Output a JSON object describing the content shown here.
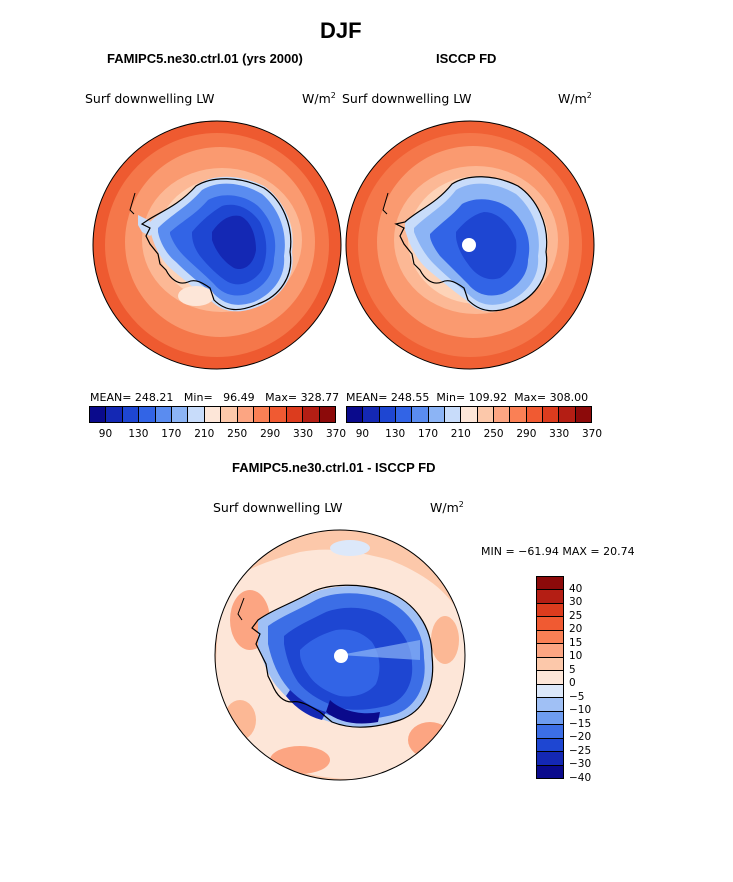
{
  "figure": {
    "title": "DJF"
  },
  "panel_left": {
    "title": "FAMIPC5.ne30.ctrl.01 (yrs 2000)",
    "variable": "Surf downwelling LW",
    "units_base": "W/m",
    "units_exp": "2",
    "mean_label": "MEAN=",
    "mean": "248.21",
    "min_label": "Min=",
    "min": "96.49",
    "max_label": "Max=",
    "max": "328.77"
  },
  "panel_right": {
    "title": "ISCCP FD",
    "variable": "Surf downwelling LW",
    "units_base": "W/m",
    "units_exp": "2",
    "mean_label": "MEAN=",
    "mean": "248.55",
    "min_label": "Min=",
    "min": "109.92",
    "max_label": "Max=",
    "max": "308.00"
  },
  "panel_diff": {
    "title": "FAMIPC5.ne30.ctrl.01 - ISCCP FD",
    "variable": "Surf downwelling LW",
    "units_base": "W/m",
    "units_exp": "2",
    "minmax_text": "MIN = −61.94 MAX =  20.74"
  },
  "colorbar_top": {
    "ticks": [
      "90",
      "130",
      "170",
      "210",
      "250",
      "290",
      "330",
      "370"
    ],
    "colors": [
      "#0a0a8c",
      "#1428b4",
      "#1e46d2",
      "#3264e6",
      "#5a8cf0",
      "#8cb4f5",
      "#c8dcfa",
      "#fde6d8",
      "#fcc8aa",
      "#fca582",
      "#fa8055",
      "#f05a32",
      "#dc3c1e",
      "#b41e14",
      "#8c0a0a"
    ]
  },
  "colorbar_diff": {
    "ticks": [
      "40",
      "30",
      "25",
      "20",
      "15",
      "10",
      "5",
      "0",
      "−5",
      "−10",
      "−15",
      "−20",
      "−25",
      "−30",
      "−40"
    ],
    "colors": [
      "#8c0a0a",
      "#b41e14",
      "#dc3c1e",
      "#f05a32",
      "#fa8055",
      "#fca582",
      "#fcc8aa",
      "#fde6d8",
      "#dce8fa",
      "#a0c0f5",
      "#6e9cf0",
      "#3c6ee6",
      "#1e46d2",
      "#1428b4",
      "#0a0a8c"
    ]
  },
  "chart_data": [
    {
      "type": "heatmap",
      "title": "FAMIPC5.ne30.ctrl.01 (yrs 2000)",
      "variable": "Surf downwelling LW",
      "units": "W/m2",
      "season": "DJF",
      "stats": {
        "mean": 248.21,
        "min": 96.49,
        "max": 328.77
      },
      "levels": [
        90,
        130,
        170,
        210,
        250,
        290,
        330,
        370
      ]
    },
    {
      "type": "heatmap",
      "title": "ISCCP FD",
      "variable": "Surf downwelling LW",
      "units": "W/m2",
      "season": "DJF",
      "stats": {
        "mean": 248.55,
        "min": 109.92,
        "max": 308.0
      },
      "levels": [
        90,
        130,
        170,
        210,
        250,
        290,
        330,
        370
      ]
    },
    {
      "type": "heatmap",
      "title": "FAMIPC5.ne30.ctrl.01 - ISCCP FD",
      "variable": "Surf downwelling LW",
      "units": "W/m2",
      "season": "DJF",
      "stats": {
        "min": -61.94,
        "max": 20.74
      },
      "levels": [
        -40,
        -30,
        -25,
        -20,
        -15,
        -10,
        -5,
        0,
        5,
        10,
        15,
        20,
        25,
        30,
        40
      ]
    }
  ]
}
